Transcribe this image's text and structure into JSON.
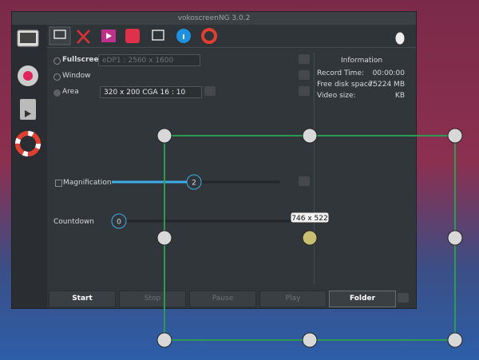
{
  "window": {
    "title": "vokoscreenNG 3.0.2"
  },
  "screen_tab": {
    "fullscreen": {
      "label": "Fullscreen",
      "display": "eDP1 : 2560 x 1600"
    },
    "window": {
      "label": "Window"
    },
    "area": {
      "label": "Area",
      "preset": "320 x 200 CGA 16 : 10"
    },
    "magnification": {
      "label": "Magnification",
      "value": 2
    },
    "countdown": {
      "label": "Countdown",
      "value": 0
    }
  },
  "information": {
    "title": "Information",
    "rows": [
      [
        "Record Time:",
        "00:00:00"
      ],
      [
        "Free disk space:",
        "75224 MB"
      ],
      [
        "Video size:",
        "KB"
      ]
    ]
  },
  "buttons": [
    "Start",
    "Stop",
    "Pause",
    "Play",
    "Folder"
  ],
  "selection": {
    "size": "746 x 522"
  }
}
